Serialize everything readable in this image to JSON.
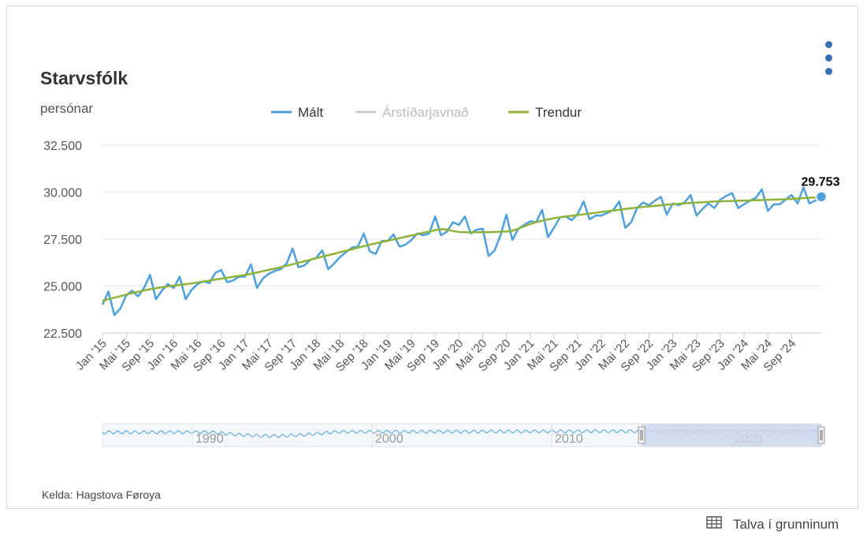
{
  "header": {
    "title": "Starvsfólk",
    "unit": "persónar"
  },
  "menu": {
    "icon": "more-vertical-icon"
  },
  "footer": {
    "source": "Kelda: Hagstova Føroya",
    "table_link": "Talva í grunninum",
    "table_icon": "table-icon"
  },
  "colors": {
    "malt": "#4e9fdb",
    "trend": "#8db33a",
    "seasonal": "#cccccc",
    "navigator_mask": "#ccd6ec"
  },
  "chart_data": {
    "type": "line",
    "title": "Starvsfólk",
    "ylabel": "persónar",
    "xlabel": "",
    "ylim": [
      22500,
      32500
    ],
    "yticks": [
      "32.500",
      "30.000",
      "27.500",
      "25.000",
      "22.500"
    ],
    "ytick_values": [
      32500,
      30000,
      27500,
      25000,
      22500
    ],
    "grid": true,
    "legend_position": "top-center",
    "legend": [
      "Mált",
      "Árstíðarjavnað",
      "Trendur"
    ],
    "x_range": [
      "2015-01",
      "2024-11"
    ],
    "xticks": [
      "Jan '15",
      "Mai '15",
      "Sep '15",
      "Jan '16",
      "Mai '16",
      "Sep '16",
      "Jan '17",
      "Mai '17",
      "Sep '17",
      "Jan '18",
      "Mai '18",
      "Sep '18",
      "Jan '19",
      "Mai '19",
      "Sep '19",
      "Jan '20",
      "Mai '20",
      "Sep '20",
      "Jan '21",
      "Mai '21",
      "Sep '21",
      "Jan '22",
      "Mai '22",
      "Sep '22",
      "Jan '23",
      "Mai '23",
      "Sep '23",
      "Jan '24",
      "Mai '24",
      "Sep '24"
    ],
    "last_value_label": "29.753",
    "series": [
      {
        "name": "Mált",
        "values": [
          24000,
          24700,
          23450,
          23800,
          24500,
          24750,
          24450,
          24900,
          25600,
          24300,
          24750,
          25100,
          24900,
          25500,
          24300,
          24800,
          25100,
          25250,
          25150,
          25700,
          25850,
          25200,
          25300,
          25500,
          25500,
          26150,
          24900,
          25400,
          25650,
          25800,
          25900,
          26200,
          27000,
          26000,
          26100,
          26400,
          26500,
          26900,
          25900,
          26200,
          26550,
          26800,
          27050,
          27100,
          27800,
          26850,
          26700,
          27400,
          27400,
          27750,
          27100,
          27200,
          27450,
          27800,
          27700,
          27800,
          28700,
          27700,
          27900,
          28400,
          28250,
          28700,
          27800,
          28000,
          28050,
          26600,
          26900,
          27700,
          28800,
          27450,
          28050,
          28250,
          28450,
          28400,
          29050,
          27600,
          28100,
          28650,
          28700,
          28500,
          28850,
          29500,
          28550,
          28750,
          28750,
          28900,
          29050,
          29500,
          28100,
          28400,
          29150,
          29450,
          29300,
          29550,
          29750,
          28800,
          29400,
          29300,
          29450,
          29850,
          28750,
          29100,
          29400,
          29150,
          29600,
          29800,
          29950,
          29150,
          29350,
          29550,
          29700,
          30150,
          29000,
          29350,
          29350,
          29600,
          29850,
          29400,
          30250,
          29400,
          29550,
          29753
        ],
        "values_note_": ""
      },
      {
        "name": "Trendur",
        "values": [
          24200,
          24300,
          24380,
          24460,
          24540,
          24620,
          24690,
          24760,
          24830,
          24880,
          24930,
          24980,
          25020,
          25060,
          25100,
          25140,
          25190,
          25240,
          25290,
          25340,
          25390,
          25440,
          25490,
          25540,
          25590,
          25650,
          25720,
          25790,
          25860,
          25930,
          26000,
          26080,
          26160,
          26240,
          26320,
          26400,
          26480,
          26560,
          26640,
          26720,
          26800,
          26880,
          26960,
          27040,
          27120,
          27200,
          27270,
          27340,
          27410,
          27480,
          27550,
          27620,
          27690,
          27760,
          27830,
          27900,
          27970,
          28030,
          28000,
          27930,
          27880,
          27860,
          27860,
          27860,
          27870,
          27870,
          27880,
          27890,
          27900,
          27950,
          28050,
          28180,
          28300,
          28400,
          28480,
          28550,
          28610,
          28660,
          28700,
          28740,
          28780,
          28820,
          28860,
          28900,
          28940,
          28980,
          29020,
          29060,
          29100,
          29140,
          29180,
          29210,
          29240,
          29270,
          29300,
          29330,
          29360,
          29380,
          29400,
          29420,
          29440,
          29460,
          29480,
          29500,
          29510,
          29520,
          29530,
          29540,
          29550,
          29560,
          29570,
          29580,
          29590,
          29600,
          29610,
          29620,
          29640,
          29660,
          29680,
          29700,
          29720,
          29753
        ]
      }
    ],
    "navigator": {
      "x_labels": [
        "1990",
        "2000",
        "2010",
        "2020"
      ],
      "selected_range": [
        "2015-01",
        "2024-11"
      ]
    }
  }
}
